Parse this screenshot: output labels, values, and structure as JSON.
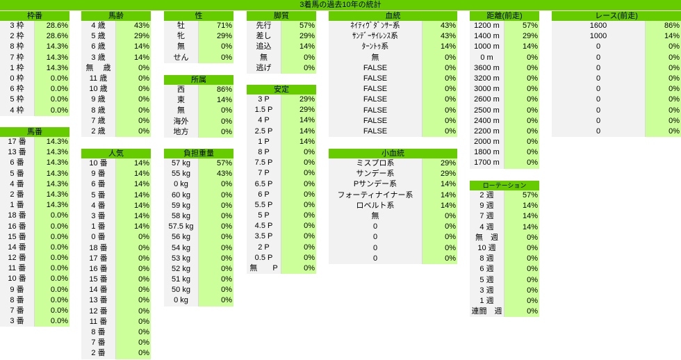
{
  "title": "3着馬の過去10年の統計",
  "tables": [
    {
      "key": "waku",
      "title": "枠番",
      "rows": [
        [
          "3 枠",
          "28.6%"
        ],
        [
          "2 枠",
          "28.6%"
        ],
        [
          "8 枠",
          "14.3%"
        ],
        [
          "7 枠",
          "14.3%"
        ],
        [
          "1 枠",
          "14.3%"
        ],
        [
          "0 枠",
          "0.0%"
        ],
        [
          "6 枠",
          "0.0%"
        ],
        [
          "5 枠",
          "0.0%"
        ],
        [
          "4 枠",
          "0.0%"
        ]
      ]
    },
    {
      "key": "umaban",
      "title": "馬番",
      "rows": [
        [
          "17 番",
          "14.3%"
        ],
        [
          "13 番",
          "14.3%"
        ],
        [
          "6 番",
          "14.3%"
        ],
        [
          "5 番",
          "14.3%"
        ],
        [
          "4 番",
          "14.3%"
        ],
        [
          "2 番",
          "14.3%"
        ],
        [
          "1 番",
          "14.3%"
        ],
        [
          "18 番",
          "0.0%"
        ],
        [
          "16 番",
          "0.0%"
        ],
        [
          "15 番",
          "0.0%"
        ],
        [
          "14 番",
          "0.0%"
        ],
        [
          "12 番",
          "0.0%"
        ],
        [
          "11 番",
          "0.0%"
        ],
        [
          "10 番",
          "0.0%"
        ],
        [
          "9 番",
          "0.0%"
        ],
        [
          "8 番",
          "0.0%"
        ],
        [
          "7 番",
          "0.0%"
        ],
        [
          "3 番",
          "0.0%"
        ]
      ]
    },
    {
      "key": "barei",
      "title": "馬齢",
      "rows": [
        [
          "4 歳",
          "43%"
        ],
        [
          "5 歳",
          "29%"
        ],
        [
          "6 歳",
          "14%"
        ],
        [
          "3 歳",
          "14%"
        ],
        [
          "無　 歳",
          "0%"
        ],
        [
          "11 歳",
          "0%"
        ],
        [
          "10 歳",
          "0%"
        ],
        [
          "9 歳",
          "0%"
        ],
        [
          "8 歳",
          "0%"
        ],
        [
          "7 歳",
          "0%"
        ],
        [
          "2 歳",
          "0%"
        ]
      ]
    },
    {
      "key": "ninki",
      "title": "人気",
      "rows": [
        [
          "10 番",
          "14%"
        ],
        [
          "9 番",
          "14%"
        ],
        [
          "6 番",
          "14%"
        ],
        [
          "5 番",
          "14%"
        ],
        [
          "4 番",
          "14%"
        ],
        [
          "3 番",
          "14%"
        ],
        [
          "1 番",
          "14%"
        ],
        [
          "0 番",
          "0%"
        ],
        [
          "18 番",
          "0%"
        ],
        [
          "17 番",
          "0%"
        ],
        [
          "16 番",
          "0%"
        ],
        [
          "15 番",
          "0%"
        ],
        [
          "14 番",
          "0%"
        ],
        [
          "13 番",
          "0%"
        ],
        [
          "12 番",
          "0%"
        ],
        [
          "11 番",
          "0%"
        ],
        [
          "8 番",
          "0%"
        ],
        [
          "7 番",
          "0%"
        ],
        [
          "2 番",
          "0%"
        ]
      ]
    },
    {
      "key": "sei",
      "title": "性",
      "rows": [
        [
          "牡",
          "71%"
        ],
        [
          "牝",
          "29%"
        ],
        [
          "無",
          "0%"
        ],
        [
          "せん",
          "0%"
        ]
      ]
    },
    {
      "key": "shozoku",
      "title": "所属",
      "rows": [
        [
          "西",
          "86%"
        ],
        [
          "東",
          "14%"
        ],
        [
          "無",
          "0%"
        ],
        [
          "海外",
          "0%"
        ],
        [
          "地方",
          "0%"
        ]
      ]
    },
    {
      "key": "futan",
      "title": "負担重量",
      "rows": [
        [
          "57 kg",
          "57%"
        ],
        [
          "55 kg",
          "43%"
        ],
        [
          "0 kg",
          "0%"
        ],
        [
          "60 kg",
          "0%"
        ],
        [
          "59 kg",
          "0%"
        ],
        [
          "58 kg",
          "0%"
        ],
        [
          "57.5 kg",
          "0%"
        ],
        [
          "56 kg",
          "0%"
        ],
        [
          "54 kg",
          "0%"
        ],
        [
          "53 kg",
          "0%"
        ],
        [
          "52 kg",
          "0%"
        ],
        [
          "51 kg",
          "0%"
        ],
        [
          "50 kg",
          "0%"
        ],
        [
          "0 kg",
          "0%"
        ]
      ]
    },
    {
      "key": "kyakushitsu",
      "title": "脚質",
      "rows": [
        [
          "先行",
          "57%"
        ],
        [
          "差し",
          "29%"
        ],
        [
          "追込",
          "14%"
        ],
        [
          "無",
          "0%"
        ],
        [
          "逃げ",
          "0%"
        ]
      ]
    },
    {
      "key": "antei",
      "title": "安定",
      "rows": [
        [
          "3 P",
          "29%"
        ],
        [
          "1.5 P",
          "29%"
        ],
        [
          "4 P",
          "14%"
        ],
        [
          "2.5 P",
          "14%"
        ],
        [
          "1 P",
          "14%"
        ],
        [
          "8 P",
          "0%"
        ],
        [
          "7.5 P",
          "0%"
        ],
        [
          "7 P",
          "0%"
        ],
        [
          "6.5 P",
          "0%"
        ],
        [
          "6 P",
          "0%"
        ],
        [
          "5.5 P",
          "0%"
        ],
        [
          "5 P",
          "0%"
        ],
        [
          "4.5 P",
          "0%"
        ],
        [
          "3.5 P",
          "0%"
        ],
        [
          "2 P",
          "0%"
        ],
        [
          "0.5 P",
          "0%"
        ],
        [
          "無　　P",
          "0%"
        ]
      ]
    },
    {
      "key": "kettou",
      "title": "血統",
      "rows": [
        [
          "ﾈｲﾃｨｳﾞﾀﾞﾝｻｰ系",
          "43%"
        ],
        [
          "ｻﾝﾃﾞｰｻｲﾚﾝｽ系",
          "43%"
        ],
        [
          "ﾀｰﾝﾄｩ系",
          "14%"
        ],
        [
          "無",
          "0%"
        ],
        [
          "FALSE",
          "0%"
        ],
        [
          "FALSE",
          "0%"
        ],
        [
          "FALSE",
          "0%"
        ],
        [
          "FALSE",
          "0%"
        ],
        [
          "FALSE",
          "0%"
        ],
        [
          "FALSE",
          "0%"
        ],
        [
          "FALSE",
          "0%"
        ]
      ]
    },
    {
      "key": "shokettou",
      "title": "小血統",
      "rows": [
        [
          "ミスプロ系",
          "29%"
        ],
        [
          "サンデー系",
          "29%"
        ],
        [
          "Pサンデー系",
          "14%"
        ],
        [
          "フォーティナイナー系",
          "14%"
        ],
        [
          "ロベルト系",
          "14%"
        ],
        [
          "無",
          "0%"
        ],
        [
          "0",
          "0%"
        ],
        [
          "0",
          "0%"
        ],
        [
          "0",
          "0%"
        ],
        [
          "0",
          "0%"
        ]
      ]
    },
    {
      "key": "kyori",
      "title": "距離(前走)",
      "rows": [
        [
          "1200 m",
          "57%"
        ],
        [
          "1400 m",
          "29%"
        ],
        [
          "1000 m",
          "14%"
        ],
        [
          "0 m",
          "0%"
        ],
        [
          "3600 m",
          "0%"
        ],
        [
          "3200 m",
          "0%"
        ],
        [
          "3000 m",
          "0%"
        ],
        [
          "2600 m",
          "0%"
        ],
        [
          "2500 m",
          "0%"
        ],
        [
          "2400 m",
          "0%"
        ],
        [
          "2200 m",
          "0%"
        ],
        [
          "2000 m",
          "0%"
        ],
        [
          "1800 m",
          "0%"
        ],
        [
          "1700 m",
          "0%"
        ]
      ]
    },
    {
      "key": "rotation",
      "title": "ローテーション",
      "rows": [
        [
          "2 週",
          "57%"
        ],
        [
          "9 週",
          "14%"
        ],
        [
          "7 週",
          "14%"
        ],
        [
          "4 週",
          "14%"
        ],
        [
          "無　週",
          "0%"
        ],
        [
          "10 週",
          "0%"
        ],
        [
          "8 週",
          "0%"
        ],
        [
          "6 週",
          "0%"
        ],
        [
          "5 週",
          "0%"
        ],
        [
          "3 週",
          "0%"
        ],
        [
          "1 週",
          "0%"
        ],
        [
          "連闘　週",
          "0%"
        ]
      ]
    },
    {
      "key": "race",
      "title": "レース(前走)",
      "rows": [
        [
          "1600",
          "86%"
        ],
        [
          "1000",
          "14%"
        ],
        [
          "0",
          "0%"
        ],
        [
          "0",
          "0%"
        ],
        [
          "0",
          "0%"
        ],
        [
          "0",
          "0%"
        ],
        [
          "0",
          "0%"
        ],
        [
          "0",
          "0%"
        ],
        [
          "0",
          "0%"
        ],
        [
          "0",
          "0%"
        ],
        [
          "0",
          "0%"
        ]
      ]
    }
  ]
}
